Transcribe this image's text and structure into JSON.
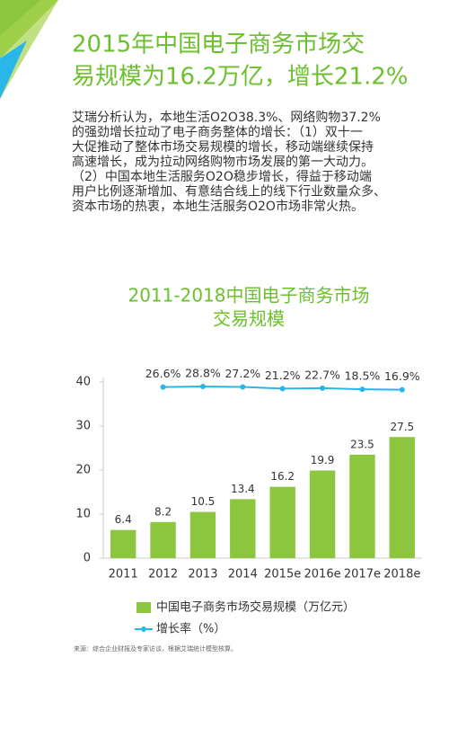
{
  "header": {
    "title": [
      "2015年中国电子商务市场交",
      "易规模为16.2万亿，增长21.2%"
    ]
  },
  "body": [
    "艾瑞分析认为，本地生活O2O38.3%、网络购物37.2%",
    "的强劲增长拉动了电子商务整体的增长：（1）双十一",
    "大促推动了整体市场交易规模的增长，移动端继续保持",
    "高速增长，成为拉动网络购物市场发展的第一大动力。",
    "（2）中国本地生活服务O2O稳步增长，得益于移动端",
    "用户比例逐渐增加、有意结合线上的线下行业数量众多、",
    "资本市场的热衷，本地生活服务O2O市场非常火热。"
  ],
  "chart_data": {
    "type": "bar",
    "title": [
      "2011-2018中国电子商务市场",
      "交易规模"
    ],
    "categories": [
      "2011",
      "2012",
      "2013",
      "2014",
      "2015e",
      "2016e",
      "2017e",
      "2018e"
    ],
    "series": [
      {
        "name": "中国电子商务市场交易规模（万亿元）",
        "type": "bar",
        "color": "#8cc63f",
        "values": [
          6.4,
          8.2,
          10.5,
          13.4,
          16.2,
          19.9,
          23.5,
          27.5
        ]
      },
      {
        "name": "增长率（%）",
        "type": "line",
        "axis": "y2",
        "color": "#29b6e8",
        "values": [
          null,
          26.6,
          28.8,
          27.2,
          21.2,
          22.7,
          18.5,
          16.9
        ],
        "value_labels": [
          null,
          "26.6%",
          "28.8%",
          "27.2%",
          "21.2%",
          "22.7%",
          "18.5%",
          "16.9%"
        ]
      }
    ],
    "ylim": [
      0,
      40
    ],
    "yticks": [
      0,
      10,
      20,
      30,
      40
    ],
    "y2lim": [
      -590,
      45
    ],
    "grid": false,
    "legend": "bottom"
  },
  "source": "来源：综合企业财报及专家访谈，根据艾瑞统计模型核算。"
}
